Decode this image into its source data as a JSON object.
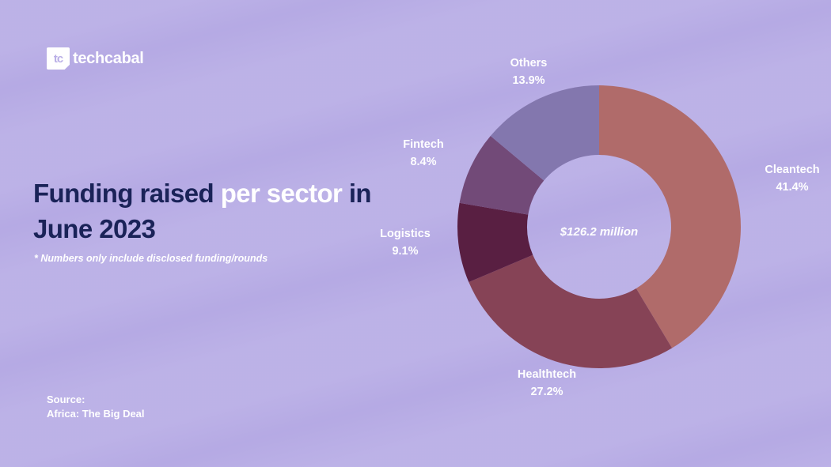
{
  "brand": {
    "logo_mark": "tc",
    "name": "techcabal"
  },
  "header": {
    "title_part1": "Funding raised ",
    "title_part2": "per sector ",
    "title_part3": "in June 2023",
    "note": "* Numbers only include disclosed funding/rounds"
  },
  "source": {
    "label": "Source:",
    "value": "Africa: The Big Deal"
  },
  "colors": {
    "background": "#b9aee6",
    "title_dark": "#1a2358",
    "text_light": "#ffffff"
  },
  "chart_data": {
    "type": "pie",
    "variant": "donut",
    "center_label": "$126.2 million",
    "slices": [
      {
        "name": "Cleantech",
        "value": 41.4,
        "label": "41.4%",
        "color": "#b06b6a"
      },
      {
        "name": "Healthtech",
        "value": 27.2,
        "label": "27.2%",
        "color": "#864356"
      },
      {
        "name": "Logistics",
        "value": 9.1,
        "label": "9.1%",
        "color": "#591f42"
      },
      {
        "name": "Fintech",
        "value": 8.4,
        "label": "8.4%",
        "color": "#724a78"
      },
      {
        "name": "Others",
        "value": 13.9,
        "label": "13.9%",
        "color": "#8377ae"
      }
    ]
  }
}
